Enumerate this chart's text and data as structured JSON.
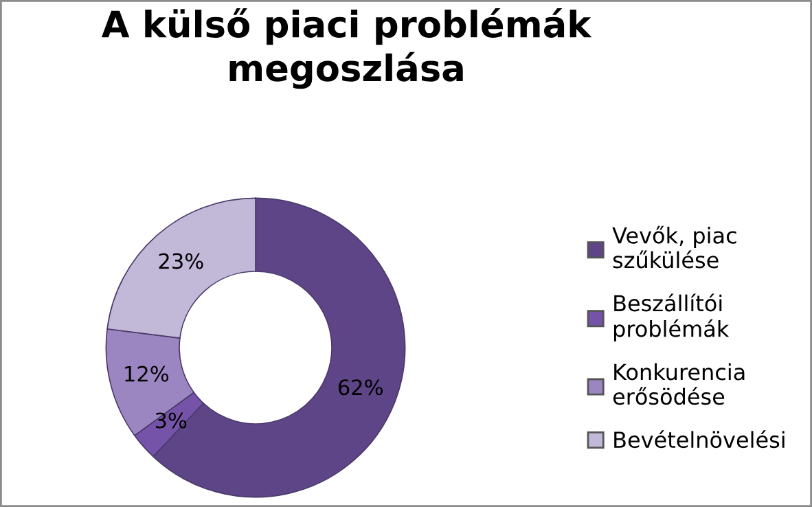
{
  "chart_data": {
    "type": "donut",
    "title": "A külső piaci problémák\nmegoszlása",
    "categories": [
      "Vevők, piac\nszűkülése",
      "Beszállítói\nproblémák",
      "Konkurencia\nerősödése",
      "Bevételnövelési"
    ],
    "values": [
      62,
      3,
      12,
      23
    ],
    "colors": [
      "#5e4587",
      "#7453a8",
      "#9c86c2",
      "#c2b8d8"
    ],
    "value_labels": [
      "62%",
      "3%",
      "12%",
      "23%"
    ],
    "legend": "right"
  }
}
